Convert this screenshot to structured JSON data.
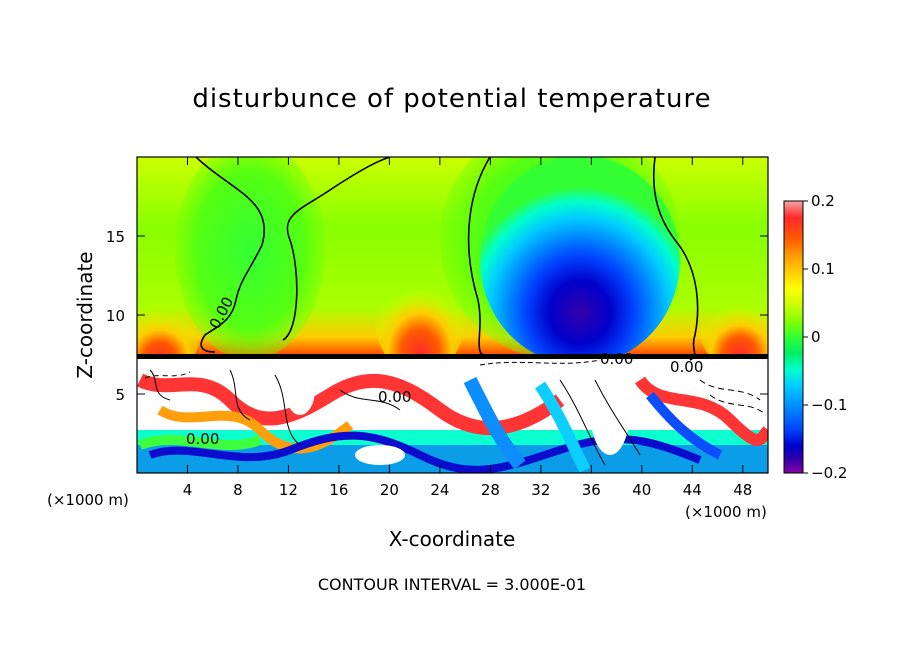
{
  "chart_data": {
    "type": "heatmap",
    "title": "disturbunce of potential temperature",
    "xlabel": "X-coordinate",
    "ylabel": "Z-coordinate",
    "x_unit_left": "(×1000 m)",
    "x_unit_right": "(×1000 m)",
    "footer": "CONTOUR INTERVAL = 3.000E-01",
    "xlim": [
      0,
      50
    ],
    "ylim": [
      0,
      20
    ],
    "x_ticks": [
      4,
      8,
      12,
      16,
      20,
      24,
      28,
      32,
      36,
      40,
      44,
      48
    ],
    "x_tick_labels": [
      "4",
      "8",
      "12",
      "16",
      "20",
      "24",
      "28",
      "32",
      "36",
      "40",
      "44",
      "48"
    ],
    "y_ticks": [
      5,
      10,
      15
    ],
    "y_tick_labels": [
      "5",
      "10",
      "15"
    ],
    "colorbar": {
      "range": [
        -0.2,
        0.2
      ],
      "tick_values": [
        0.2,
        0.1,
        0,
        -0.1,
        -0.2
      ],
      "tick_labels": [
        "0.2",
        "0.1",
        "0",
        "-0.1",
        "-0.2"
      ],
      "colors": [
        "#f4a6a6",
        "#ff2a2a",
        "#ff5a00",
        "#ff9a00",
        "#ffcc00",
        "#ffff00",
        "#ccff00",
        "#88ff00",
        "#33ff33",
        "#00ee66",
        "#00ffcc",
        "#00ccff",
        "#0088ff",
        "#0044ff",
        "#0000cc",
        "#3300aa",
        "#8800aa"
      ]
    },
    "contour_labels": [
      "0.00",
      "0.00",
      "0.00",
      "0.00",
      "0.00"
    ],
    "grid": false
  }
}
